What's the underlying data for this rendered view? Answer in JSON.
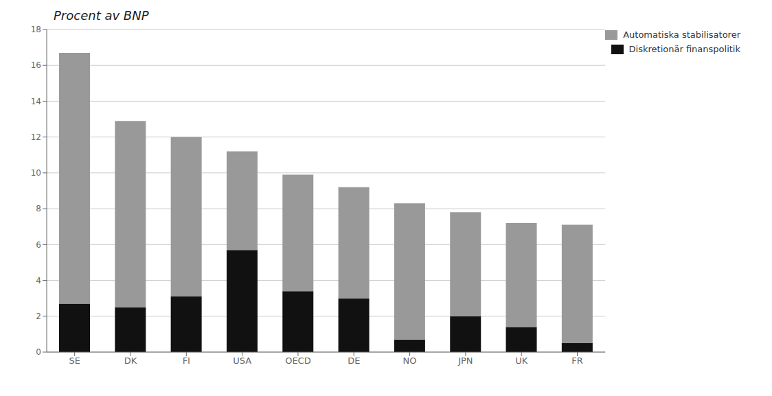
{
  "chart_data": {
    "type": "bar",
    "title": "Procent av BNP",
    "stacked": true,
    "categories": [
      "SE",
      "DK",
      "FI",
      "USA",
      "OECD",
      "DE",
      "NO",
      "JPN",
      "UK",
      "FR"
    ],
    "series": [
      {
        "name": "Diskretionär finanspolitik",
        "color": "#111111",
        "values": [
          2.7,
          2.5,
          3.1,
          5.7,
          3.4,
          3.0,
          0.7,
          2.0,
          1.4,
          0.5
        ]
      },
      {
        "name": "Automatiska stabilisatorer",
        "color": "#999999",
        "values": [
          14.0,
          10.4,
          8.9,
          5.5,
          6.5,
          6.2,
          7.6,
          5.8,
          5.8,
          6.6
        ]
      }
    ],
    "ylim": [
      0,
      18
    ],
    "yticks": [
      0,
      2,
      4,
      6,
      8,
      10,
      12,
      14,
      16,
      18
    ],
    "grid": true,
    "legend": "upper right"
  }
}
